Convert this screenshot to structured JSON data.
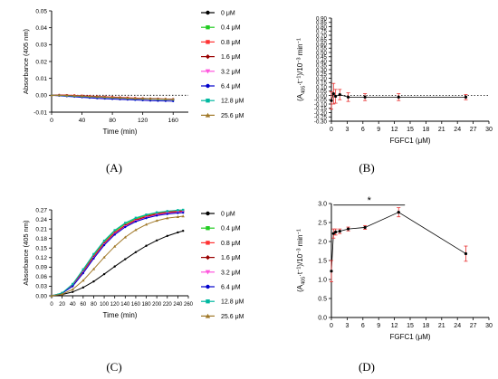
{
  "figure": {
    "panel_labels": [
      "(A)",
      "(B)",
      "(C)",
      "(D)"
    ]
  },
  "chart_data": [
    {
      "panel": "A",
      "type": "line",
      "xlabel": "Time (min)",
      "ylabel": "Absorbance (405 nm)",
      "xlim": [
        0,
        180
      ],
      "ylim": [
        -0.01,
        0.05
      ],
      "x_ticks": [
        0,
        40,
        80,
        120,
        160
      ],
      "y_ticks": [
        "-0.01",
        "0.00",
        "0.01",
        "0.02",
        "0.03",
        "0.04",
        "0.05"
      ],
      "reference_line": 0,
      "legend_position": "right",
      "x": [
        0,
        10,
        20,
        30,
        40,
        50,
        60,
        70,
        80,
        90,
        100,
        110,
        120,
        130,
        140,
        150,
        160
      ],
      "series": [
        {
          "name": "0 μM",
          "color": "#000000",
          "marker": "circle",
          "values": [
            0,
            0,
            0,
            -0.0003,
            -0.0005,
            -0.0006,
            -0.0008,
            -0.001,
            -0.0012,
            -0.0014,
            -0.0016,
            -0.0018,
            -0.002,
            -0.0021,
            -0.0022,
            -0.0023,
            -0.0024
          ]
        },
        {
          "name": "0.4 μM",
          "color": "#22cc22",
          "marker": "square",
          "values": [
            0,
            0,
            -0.0002,
            -0.0004,
            -0.0006,
            -0.0008,
            -0.001,
            -0.0012,
            -0.0014,
            -0.0016,
            -0.0018,
            -0.002,
            -0.0021,
            -0.0022,
            -0.0023,
            -0.0024,
            -0.0025
          ]
        },
        {
          "name": "0.8 μM",
          "color": "#ff3333",
          "marker": "square",
          "values": [
            0,
            0.0002,
            0.0001,
            0,
            -0.0002,
            -0.0004,
            -0.0006,
            -0.0008,
            -0.001,
            -0.0012,
            -0.0014,
            -0.0016,
            -0.0018,
            -0.002,
            -0.0021,
            -0.0022,
            -0.0023
          ]
        },
        {
          "name": "1.6 μM",
          "color": "#990000",
          "marker": "diamond",
          "values": [
            0,
            0.0001,
            0,
            -0.0002,
            -0.0004,
            -0.0006,
            -0.0008,
            -0.001,
            -0.0012,
            -0.0014,
            -0.0016,
            -0.0018,
            -0.0019,
            -0.002,
            -0.0021,
            -0.0022,
            -0.0023
          ]
        },
        {
          "name": "3.2 μM",
          "color": "#ff55dd",
          "marker": "triangle-down",
          "values": [
            0,
            -0.0002,
            -0.0004,
            -0.0006,
            -0.0008,
            -0.001,
            -0.0012,
            -0.0014,
            -0.0016,
            -0.0018,
            -0.002,
            -0.0022,
            -0.0023,
            -0.0024,
            -0.0025,
            -0.0026,
            -0.0027
          ]
        },
        {
          "name": "6.4 μM",
          "color": "#0000cc",
          "marker": "circle",
          "values": [
            0,
            -0.0003,
            -0.0006,
            -0.0009,
            -0.0012,
            -0.0015,
            -0.0018,
            -0.002,
            -0.0022,
            -0.0024,
            -0.0026,
            -0.0028,
            -0.003,
            -0.0032,
            -0.0033,
            -0.0034,
            -0.0035
          ]
        },
        {
          "name": "12.8 μM",
          "color": "#00b8a0",
          "marker": "square",
          "values": [
            0,
            -0.0001,
            -0.0003,
            -0.0005,
            -0.0007,
            -0.0009,
            -0.0011,
            -0.0013,
            -0.0015,
            -0.0017,
            -0.0019,
            -0.0021,
            -0.0022,
            -0.0023,
            -0.0024,
            -0.0025,
            -0.0026
          ]
        },
        {
          "name": "25.6 μM",
          "color": "#a07828",
          "marker": "triangle-up",
          "values": [
            0,
            0,
            -0.0001,
            -0.0003,
            -0.0005,
            -0.0007,
            -0.0009,
            -0.0011,
            -0.0013,
            -0.0015,
            -0.0017,
            -0.0019,
            -0.002,
            -0.0021,
            -0.0022,
            -0.0023,
            -0.0024
          ]
        }
      ]
    },
    {
      "panel": "B",
      "type": "scatter",
      "xlabel": "FGFC1 (μM)",
      "ylabel": "(A405·t-1)/10-3 min-1",
      "ylabel_parts": [
        "(A",
        "405",
        "·t",
        "−1",
        ")/10",
        "−3",
        " min",
        "−1"
      ],
      "xlim": [
        0,
        30
      ],
      "ylim": [
        -0.3,
        0.9
      ],
      "x_ticks": [
        0,
        3,
        6,
        9,
        12,
        15,
        18,
        21,
        24,
        27,
        30
      ],
      "y_ticks": [
        "-0.30",
        "-0.25",
        "-0.20",
        "-0.15",
        "-0.10",
        "-0.05",
        "0.00",
        "0.05",
        "0.10",
        "0.15",
        "0.20",
        "0.25",
        "0.30",
        "0.35",
        "0.40",
        "0.45",
        "0.50",
        "0.55",
        "0.60",
        "0.65",
        "0.70",
        "0.75",
        "0.80",
        "0.85",
        "0.90"
      ],
      "reference_line": 0,
      "x": [
        0,
        0.4,
        0.8,
        1.6,
        3.2,
        6.4,
        12.8,
        25.6
      ],
      "y": [
        -0.06,
        0.02,
        -0.01,
        0.01,
        -0.02,
        -0.02,
        -0.02,
        -0.02
      ],
      "err": [
        0.1,
        0.12,
        0.08,
        0.06,
        0.05,
        0.04,
        0.04,
        0.03
      ]
    },
    {
      "panel": "C",
      "type": "line",
      "xlabel": "Time (min)",
      "ylabel": "Absorbance (405 nm)",
      "xlim": [
        0,
        260
      ],
      "ylim": [
        0,
        0.27
      ],
      "x_ticks": [
        0,
        20,
        40,
        60,
        80,
        100,
        120,
        140,
        160,
        180,
        200,
        220,
        240,
        260
      ],
      "y_ticks": [
        "0.00",
        "0.03",
        "0.06",
        "0.09",
        "0.12",
        "0.15",
        "0.18",
        "0.21",
        "0.24",
        "0.27"
      ],
      "reference_line": 0,
      "legend_position": "right",
      "x": [
        0,
        20,
        40,
        60,
        80,
        100,
        120,
        140,
        160,
        180,
        200,
        220,
        240,
        250
      ],
      "series": [
        {
          "name": "0 μM",
          "color": "#000000",
          "marker": "circle",
          "values": [
            0,
            0.004,
            0.012,
            0.026,
            0.045,
            0.068,
            0.092,
            0.115,
            0.137,
            0.157,
            0.174,
            0.188,
            0.199,
            0.204
          ]
        },
        {
          "name": "0.4 μM",
          "color": "#22cc22",
          "marker": "square",
          "values": [
            0,
            0.008,
            0.035,
            0.08,
            0.128,
            0.17,
            0.203,
            0.226,
            0.242,
            0.253,
            0.26,
            0.265,
            0.268,
            0.269
          ]
        },
        {
          "name": "0.8 μM",
          "color": "#ff3333",
          "marker": "square",
          "values": [
            0,
            0.008,
            0.033,
            0.077,
            0.124,
            0.166,
            0.199,
            0.222,
            0.239,
            0.25,
            0.258,
            0.263,
            0.266,
            0.267
          ]
        },
        {
          "name": "1.6 μM",
          "color": "#990000",
          "marker": "diamond",
          "values": [
            0,
            0.008,
            0.032,
            0.075,
            0.121,
            0.163,
            0.196,
            0.22,
            0.237,
            0.248,
            0.256,
            0.261,
            0.264,
            0.265
          ]
        },
        {
          "name": "3.2 μM",
          "color": "#ff55dd",
          "marker": "triangle-down",
          "values": [
            0,
            0.008,
            0.031,
            0.073,
            0.119,
            0.161,
            0.194,
            0.218,
            0.235,
            0.246,
            0.254,
            0.259,
            0.262,
            0.263
          ]
        },
        {
          "name": "6.4 μM",
          "color": "#0000cc",
          "marker": "circle",
          "values": [
            0,
            0.008,
            0.03,
            0.071,
            0.117,
            0.159,
            0.192,
            0.216,
            0.233,
            0.244,
            0.252,
            0.257,
            0.26,
            0.261
          ]
        },
        {
          "name": "12.8 μM",
          "color": "#00b8a0",
          "marker": "square",
          "values": [
            0,
            0.009,
            0.037,
            0.083,
            0.131,
            0.173,
            0.206,
            0.229,
            0.245,
            0.255,
            0.262,
            0.266,
            0.269,
            0.27
          ]
        },
        {
          "name": "25.6 μM",
          "color": "#a07828",
          "marker": "triangle-up",
          "values": [
            0,
            0.005,
            0.02,
            0.048,
            0.084,
            0.121,
            0.155,
            0.184,
            0.207,
            0.224,
            0.236,
            0.244,
            0.248,
            0.25
          ]
        }
      ]
    },
    {
      "panel": "D",
      "type": "scatter",
      "xlabel": "FGFC1 (μM)",
      "ylabel": "(A405·t-1)/10-3 min-1",
      "ylabel_parts": [
        "(A",
        "405",
        "·t",
        "−1",
        ")/10",
        "−3",
        " min",
        "−1"
      ],
      "xlim": [
        0,
        30
      ],
      "ylim": [
        0,
        3.0
      ],
      "x_ticks": [
        0,
        3,
        6,
        9,
        12,
        15,
        18,
        21,
        24,
        27,
        30
      ],
      "y_ticks": [
        "0.0",
        "0.5",
        "1.0",
        "1.5",
        "2.0",
        "2.5",
        "3.0"
      ],
      "x": [
        0,
        0.4,
        0.8,
        1.6,
        3.2,
        6.4,
        12.8,
        25.6
      ],
      "y": [
        1.22,
        2.21,
        2.25,
        2.27,
        2.33,
        2.37,
        2.77,
        1.68
      ],
      "err": [
        0.28,
        0.12,
        0.08,
        0.06,
        0.05,
        0.05,
        0.12,
        0.2
      ],
      "significance": {
        "label": "*",
        "from_x": 0.4,
        "to_x": 14.0,
        "y": 2.96
      }
    }
  ]
}
